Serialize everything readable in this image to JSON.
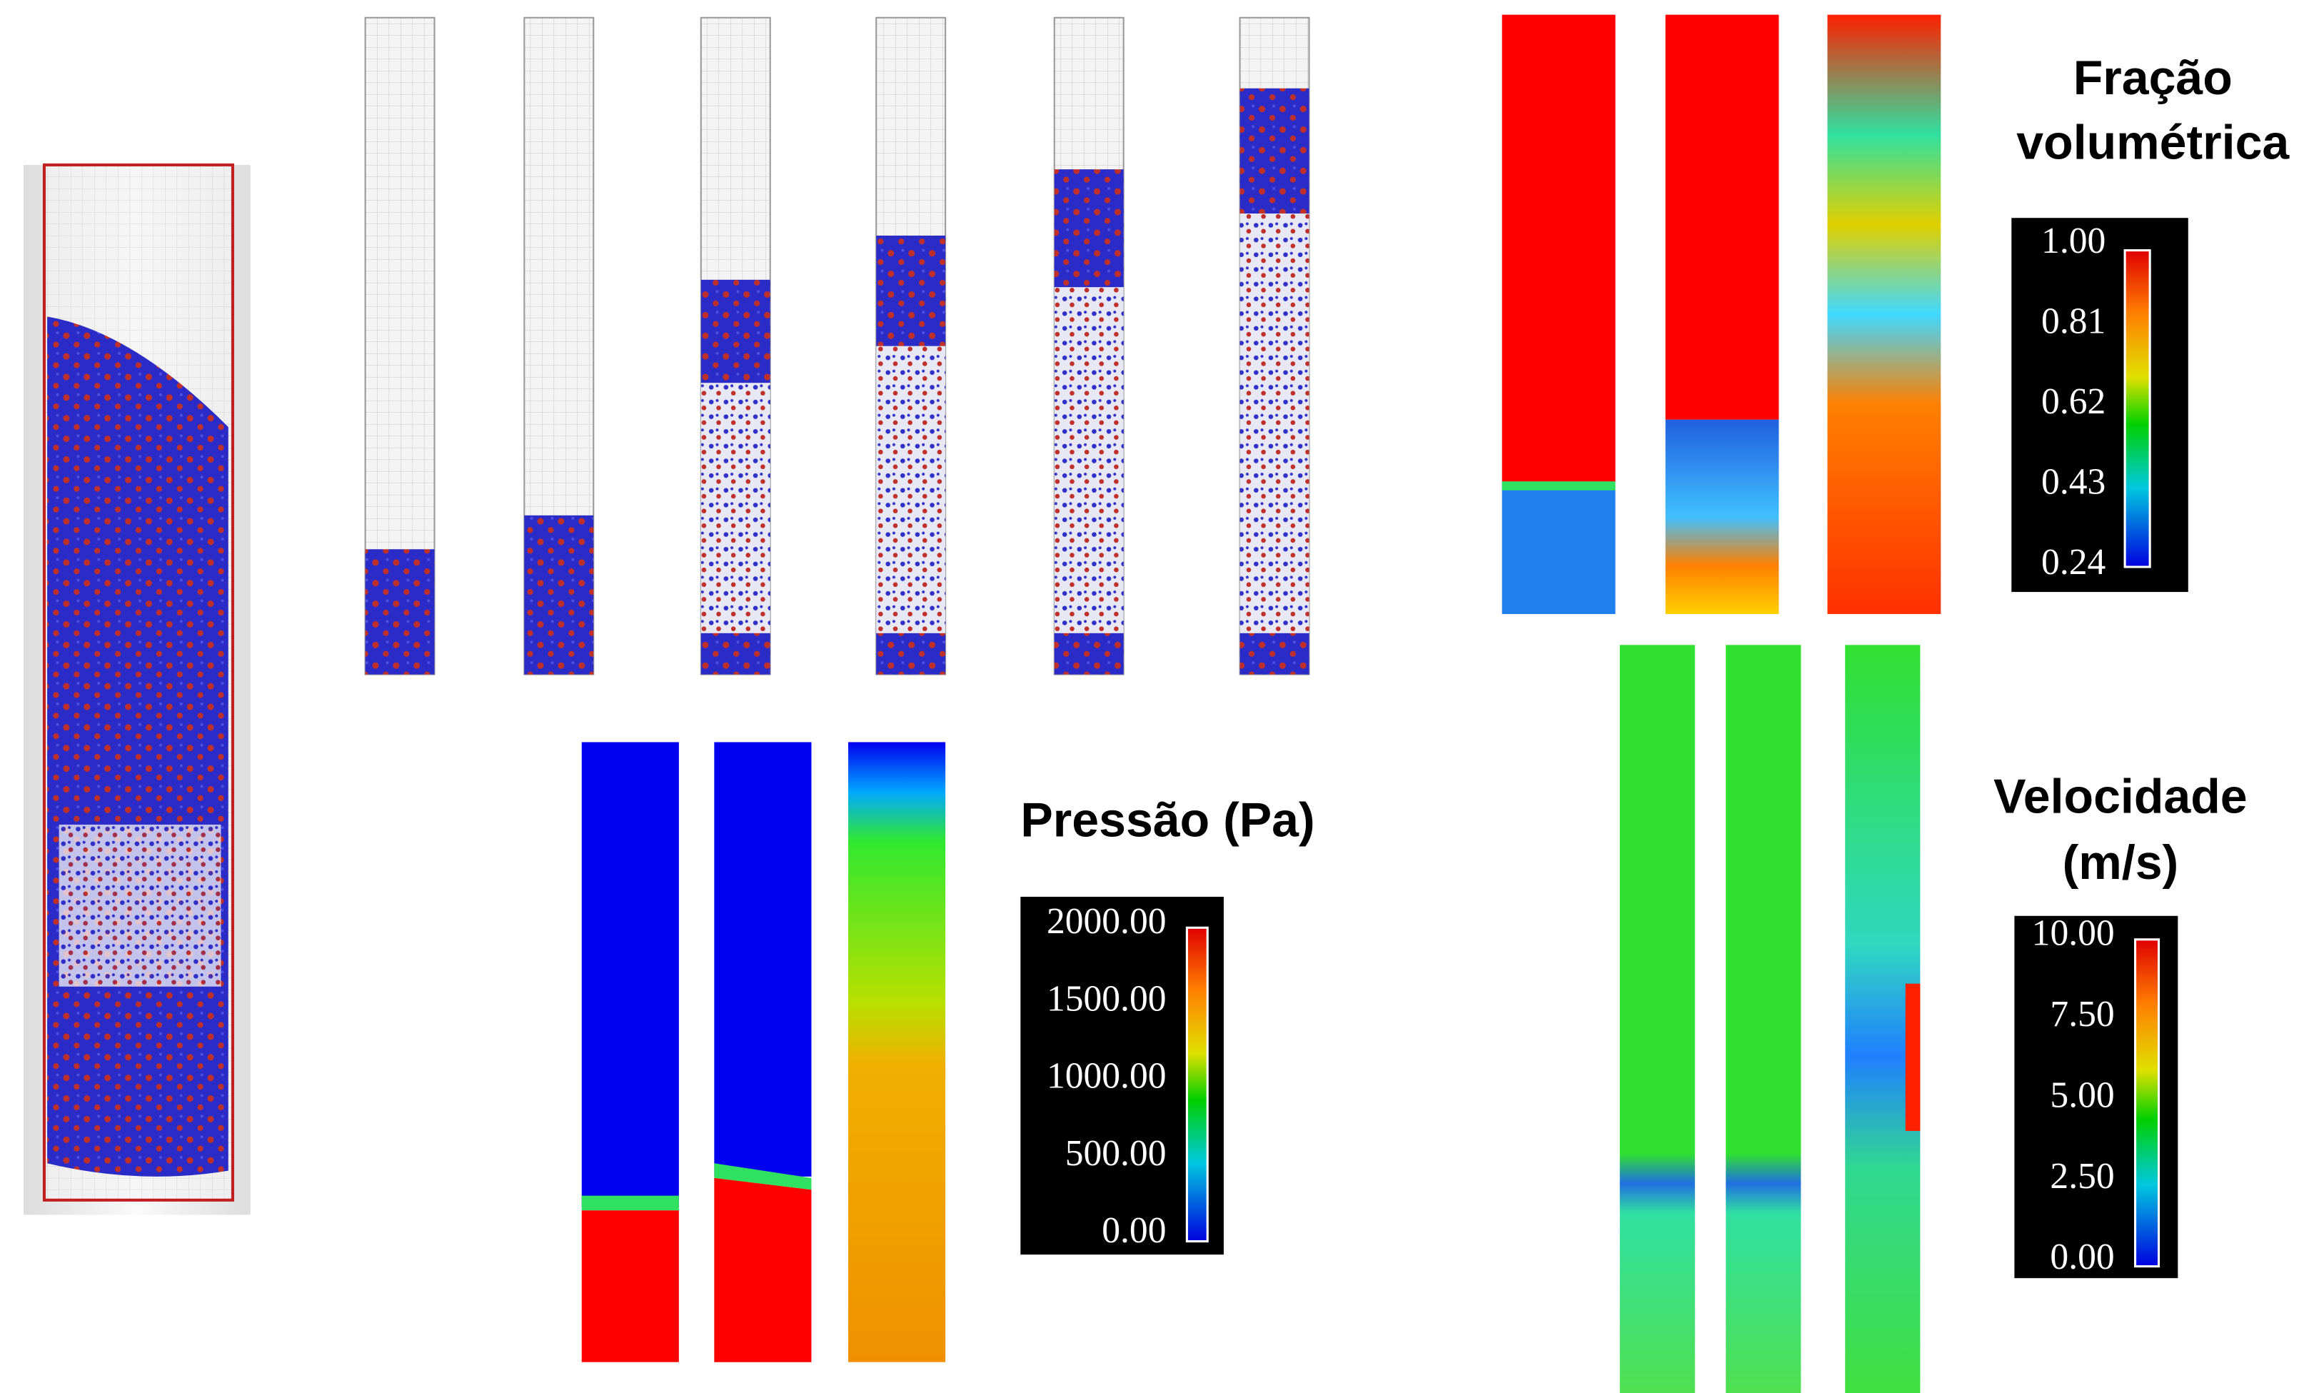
{
  "panels": {
    "volume_fraction": {
      "title": [
        "Fração",
        "volumétrica"
      ],
      "scale": [
        "1.00",
        "0.81",
        "0.62",
        "0.43",
        "0.24"
      ]
    },
    "pressure": {
      "title": "Pressão (Pa)",
      "scale": [
        "2000.00",
        "1500.00",
        "1000.00",
        "500.00",
        "0.00"
      ]
    },
    "velocity": {
      "title": [
        "Velocidade",
        "(m/s)"
      ],
      "scale": [
        "10.00",
        "7.50",
        "5.00",
        "2.50",
        "0.00"
      ]
    }
  }
}
